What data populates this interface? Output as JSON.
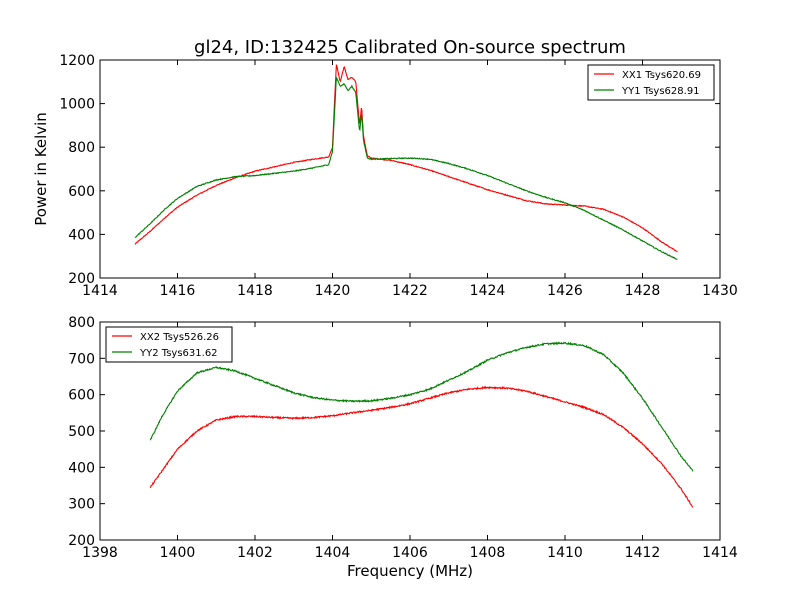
{
  "chart_data": [
    {
      "type": "line",
      "title": "gl24, ID:132425 Calibrated On-source spectrum",
      "xlabel": "",
      "ylabel": "Power in Kelvin",
      "xlim": [
        1414,
        1430
      ],
      "ylim": [
        200,
        1200
      ],
      "xticks": [
        "1414",
        "1416",
        "1418",
        "1420",
        "1422",
        "1424",
        "1426",
        "1428",
        "1430"
      ],
      "yticks": [
        "200",
        "400",
        "600",
        "800",
        "1000",
        "1200"
      ],
      "grid": false,
      "legend_position": "top-right",
      "series": [
        {
          "name": "XX1 Tsys620.69",
          "color": "#ff0000",
          "x": [
            1414.9,
            1415.3,
            1415.7,
            1416.0,
            1416.5,
            1417.0,
            1417.5,
            1418.0,
            1418.5,
            1419.0,
            1419.5,
            1419.9,
            1420.0,
            1420.05,
            1420.1,
            1420.2,
            1420.3,
            1420.4,
            1420.5,
            1420.6,
            1420.7,
            1420.75,
            1420.8,
            1420.9,
            1421.0,
            1421.5,
            1422.0,
            1422.5,
            1423.0,
            1423.5,
            1424.0,
            1424.5,
            1425.0,
            1425.5,
            1426.0,
            1426.5,
            1427.0,
            1427.5,
            1428.0,
            1428.5,
            1428.9
          ],
          "y": [
            355,
            415,
            480,
            525,
            580,
            625,
            660,
            690,
            710,
            730,
            745,
            755,
            800,
            1000,
            1180,
            1100,
            1170,
            1110,
            1120,
            1100,
            900,
            990,
            850,
            760,
            750,
            740,
            720,
            695,
            665,
            635,
            605,
            580,
            555,
            540,
            535,
            530,
            515,
            480,
            430,
            365,
            320
          ]
        },
        {
          "name": "YY1 Tsys628.91",
          "color": "#008000",
          "x": [
            1414.9,
            1415.3,
            1415.7,
            1416.0,
            1416.5,
            1417.0,
            1417.5,
            1418.0,
            1418.5,
            1419.0,
            1419.5,
            1419.9,
            1420.0,
            1420.05,
            1420.1,
            1420.2,
            1420.3,
            1420.4,
            1420.5,
            1420.6,
            1420.7,
            1420.75,
            1420.8,
            1420.9,
            1421.0,
            1421.5,
            1422.0,
            1422.5,
            1423.0,
            1423.5,
            1424.0,
            1424.5,
            1425.0,
            1425.5,
            1426.0,
            1426.5,
            1427.0,
            1427.5,
            1428.0,
            1428.5,
            1428.9
          ],
          "y": [
            385,
            450,
            520,
            565,
            620,
            650,
            665,
            670,
            680,
            690,
            705,
            720,
            780,
            950,
            1120,
            1080,
            1090,
            1060,
            1080,
            1050,
            870,
            960,
            830,
            750,
            745,
            748,
            750,
            745,
            725,
            700,
            670,
            635,
            600,
            570,
            545,
            510,
            465,
            420,
            370,
            320,
            285
          ]
        }
      ]
    },
    {
      "type": "line",
      "title": "",
      "xlabel": "Frequency (MHz)",
      "ylabel": "",
      "xlim": [
        1398,
        1414
      ],
      "ylim": [
        200,
        800
      ],
      "xticks": [
        "1398",
        "1400",
        "1402",
        "1404",
        "1406",
        "1408",
        "1410",
        "1412",
        "1414"
      ],
      "yticks": [
        "200",
        "300",
        "400",
        "500",
        "600",
        "700",
        "800"
      ],
      "grid": false,
      "legend_position": "top-left",
      "series": [
        {
          "name": "XX2 Tsys526.26",
          "color": "#ff0000",
          "x": [
            1399.3,
            1399.6,
            1400.0,
            1400.5,
            1401.0,
            1401.5,
            1402.0,
            1402.5,
            1403.0,
            1403.5,
            1404.0,
            1404.5,
            1405.0,
            1405.5,
            1406.0,
            1406.5,
            1407.0,
            1407.5,
            1408.0,
            1408.5,
            1409.0,
            1409.5,
            1410.0,
            1410.5,
            1411.0,
            1411.5,
            1412.0,
            1412.5,
            1413.0,
            1413.3
          ],
          "y": [
            345,
            390,
            450,
            500,
            530,
            540,
            540,
            537,
            535,
            537,
            542,
            550,
            557,
            565,
            575,
            590,
            605,
            615,
            620,
            618,
            610,
            595,
            580,
            565,
            545,
            510,
            465,
            410,
            340,
            290
          ]
        },
        {
          "name": "YY2 Tsys631.62",
          "color": "#008000",
          "x": [
            1399.3,
            1399.6,
            1400.0,
            1400.5,
            1401.0,
            1401.5,
            1402.0,
            1402.5,
            1403.0,
            1403.5,
            1404.0,
            1404.5,
            1405.0,
            1405.5,
            1406.0,
            1406.5,
            1407.0,
            1407.5,
            1408.0,
            1408.5,
            1409.0,
            1409.5,
            1410.0,
            1410.5,
            1411.0,
            1411.5,
            1412.0,
            1412.5,
            1413.0,
            1413.3
          ],
          "y": [
            475,
            540,
            610,
            660,
            675,
            665,
            645,
            625,
            605,
            592,
            585,
            582,
            583,
            590,
            600,
            615,
            640,
            665,
            695,
            715,
            730,
            740,
            742,
            735,
            710,
            660,
            590,
            510,
            430,
            390
          ]
        }
      ]
    }
  ]
}
